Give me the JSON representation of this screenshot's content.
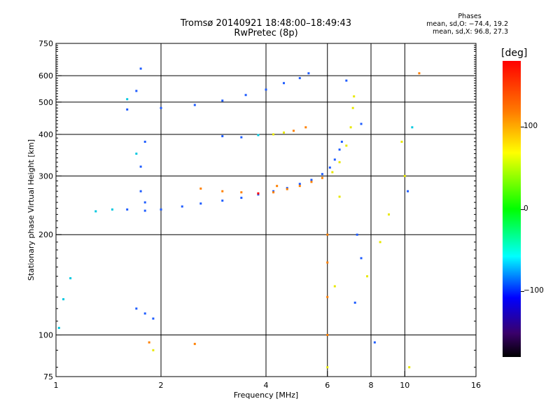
{
  "header": {
    "title_line1": "Tromsø 20140921 18:48:00–18:49:43",
    "title_line2": "RwPretec (8p)"
  },
  "phase_info": {
    "title": "Phases",
    "line1": "mean, sd,O: −74.4, 19.2",
    "line2": "mean, sd,X:  96.8, 27.3"
  },
  "colorbar": {
    "unit": "[deg]",
    "ticks": [
      {
        "value": 100,
        "label": "100"
      },
      {
        "value": 0,
        "label": "0"
      },
      {
        "value": -100,
        "label": "−100"
      }
    ],
    "range": [
      -180,
      180
    ]
  },
  "colors": {
    "red": "#ff0000",
    "orange": "#ff8000",
    "yellow": "#e8e800",
    "green": "#00cc00",
    "cyan": "#00c8e0",
    "blue": "#1e5cff",
    "darkblue": "#0000c8",
    "purple": "#3a0070",
    "black": "#000000",
    "grid": "#000000"
  },
  "chart_data": {
    "type": "scatter",
    "title": "Tromsø 20140921 18:48:00–18:49:43",
    "subtitle": "RwPretec (8p)",
    "xlabel": "Frequency [MHz]",
    "ylabel": "Stationary phase Virtual Height [km]",
    "x_scale": "log",
    "y_scale": "log",
    "xlim": [
      1,
      16
    ],
    "ylim": [
      75,
      750
    ],
    "x_ticks": [
      {
        "value": 1,
        "label": "1"
      },
      {
        "value": 2,
        "label": "2"
      },
      {
        "value": 4,
        "label": "4"
      },
      {
        "value": 6,
        "label": "6"
      },
      {
        "value": 8,
        "label": "8"
      },
      {
        "value": 10,
        "label": "10"
      },
      {
        "value": 16,
        "label": "16"
      }
    ],
    "y_ticks": [
      {
        "value": 75,
        "label": "75"
      },
      {
        "value": 100,
        "label": "100"
      },
      {
        "value": 200,
        "label": "200"
      },
      {
        "value": 300,
        "label": "300"
      },
      {
        "value": 400,
        "label": "400"
      },
      {
        "value": 500,
        "label": "500"
      },
      {
        "value": 600,
        "label": "600"
      },
      {
        "value": 750,
        "label": "750"
      }
    ],
    "x_grid": [
      2,
      4,
      6,
      8,
      10
    ],
    "y_grid": [
      100,
      200,
      300,
      400,
      500,
      600
    ],
    "color_scale": {
      "label": "[deg]",
      "min": -180,
      "max": 180
    },
    "series": [
      {
        "points": [
          [
            1.3,
            235,
            "cyan"
          ],
          [
            1.45,
            238,
            "cyan"
          ],
          [
            1.6,
            238,
            "blue"
          ],
          [
            1.8,
            236,
            "blue"
          ],
          [
            2.0,
            238,
            "blue"
          ],
          [
            2.3,
            243,
            "blue"
          ],
          [
            2.6,
            248,
            "blue"
          ],
          [
            3.0,
            253,
            "blue"
          ],
          [
            3.4,
            258,
            "blue"
          ],
          [
            3.8,
            264,
            "blue"
          ],
          [
            4.2,
            270,
            "blue"
          ],
          [
            4.6,
            276,
            "blue"
          ],
          [
            5.0,
            284,
            "blue"
          ],
          [
            5.4,
            292,
            "blue"
          ],
          [
            5.8,
            304,
            "blue"
          ],
          [
            6.1,
            318,
            "blue"
          ],
          [
            6.3,
            336,
            "blue"
          ],
          [
            6.5,
            360,
            "blue"
          ],
          [
            6.6,
            380,
            "blue"
          ]
        ]
      },
      {
        "points": [
          [
            2.6,
            275,
            "orange"
          ],
          [
            3.0,
            270,
            "orange"
          ],
          [
            3.4,
            268,
            "orange"
          ],
          [
            3.8,
            266,
            "red"
          ],
          [
            4.2,
            268,
            "orange"
          ],
          [
            4.6,
            274,
            "orange"
          ],
          [
            5.0,
            280,
            "orange"
          ],
          [
            5.4,
            288,
            "orange"
          ],
          [
            5.8,
            296,
            "orange"
          ],
          [
            6.2,
            308,
            "yellow"
          ],
          [
            6.5,
            330,
            "yellow"
          ],
          [
            6.8,
            370,
            "yellow"
          ],
          [
            7.0,
            420,
            "yellow"
          ],
          [
            7.1,
            480,
            "yellow"
          ],
          [
            7.15,
            520,
            "yellow"
          ]
        ]
      },
      {
        "points": [
          [
            1.6,
            475,
            "blue"
          ],
          [
            2.0,
            480,
            "blue"
          ],
          [
            2.5,
            490,
            "blue"
          ],
          [
            3.0,
            505,
            "blue"
          ],
          [
            3.5,
            525,
            "blue"
          ],
          [
            4.0,
            545,
            "blue"
          ],
          [
            4.5,
            570,
            "blue"
          ],
          [
            5.0,
            590,
            "blue"
          ],
          [
            5.3,
            610,
            "blue"
          ]
        ]
      },
      {
        "points": [
          [
            3.0,
            395,
            "blue"
          ],
          [
            3.4,
            392,
            "blue"
          ],
          [
            3.8,
            398,
            "cyan"
          ],
          [
            4.2,
            400,
            "yellow"
          ],
          [
            4.5,
            405,
            "yellow"
          ],
          [
            4.8,
            410,
            "orange"
          ],
          [
            5.2,
            420,
            "orange"
          ]
        ]
      },
      {
        "points": [
          [
            1.6,
            510,
            "cyan"
          ],
          [
            1.7,
            540,
            "blue"
          ],
          [
            1.75,
            630,
            "blue"
          ],
          [
            1.7,
            350,
            "cyan"
          ],
          [
            1.75,
            320,
            "blue"
          ],
          [
            1.8,
            380,
            "blue"
          ],
          [
            1.75,
            270,
            "blue"
          ],
          [
            1.8,
            250,
            "blue"
          ],
          [
            1.7,
            120,
            "blue"
          ],
          [
            1.8,
            116,
            "blue"
          ],
          [
            1.9,
            112,
            "blue"
          ],
          [
            1.02,
            105,
            "cyan"
          ],
          [
            1.05,
            128,
            "cyan"
          ],
          [
            1.1,
            148,
            "cyan"
          ],
          [
            1.85,
            95,
            "orange"
          ],
          [
            1.9,
            90,
            "yellow"
          ],
          [
            2.5,
            94,
            "orange"
          ],
          [
            6.0,
            200,
            "orange"
          ],
          [
            6.0,
            165,
            "orange"
          ],
          [
            6.0,
            130,
            "orange"
          ],
          [
            6.0,
            100,
            "orange"
          ],
          [
            6.0,
            80,
            "yellow"
          ],
          [
            6.3,
            140,
            "yellow"
          ],
          [
            6.5,
            260,
            "yellow"
          ],
          [
            7.2,
            125,
            "blue"
          ],
          [
            7.3,
            200,
            "blue"
          ],
          [
            7.5,
            170,
            "blue"
          ],
          [
            7.8,
            150,
            "yellow"
          ],
          [
            8.5,
            190,
            "yellow"
          ],
          [
            9.0,
            230,
            "yellow"
          ],
          [
            9.8,
            380,
            "yellow"
          ],
          [
            10.0,
            300,
            "yellow"
          ],
          [
            10.3,
            80,
            "yellow"
          ],
          [
            10.5,
            420,
            "cyan"
          ],
          [
            11.0,
            610,
            "orange"
          ],
          [
            10.2,
            270,
            "blue"
          ],
          [
            8.2,
            95,
            "blue"
          ],
          [
            6.8,
            580,
            "blue"
          ],
          [
            7.5,
            430,
            "blue"
          ],
          [
            4.3,
            280,
            "orange"
          ]
        ]
      }
    ]
  }
}
